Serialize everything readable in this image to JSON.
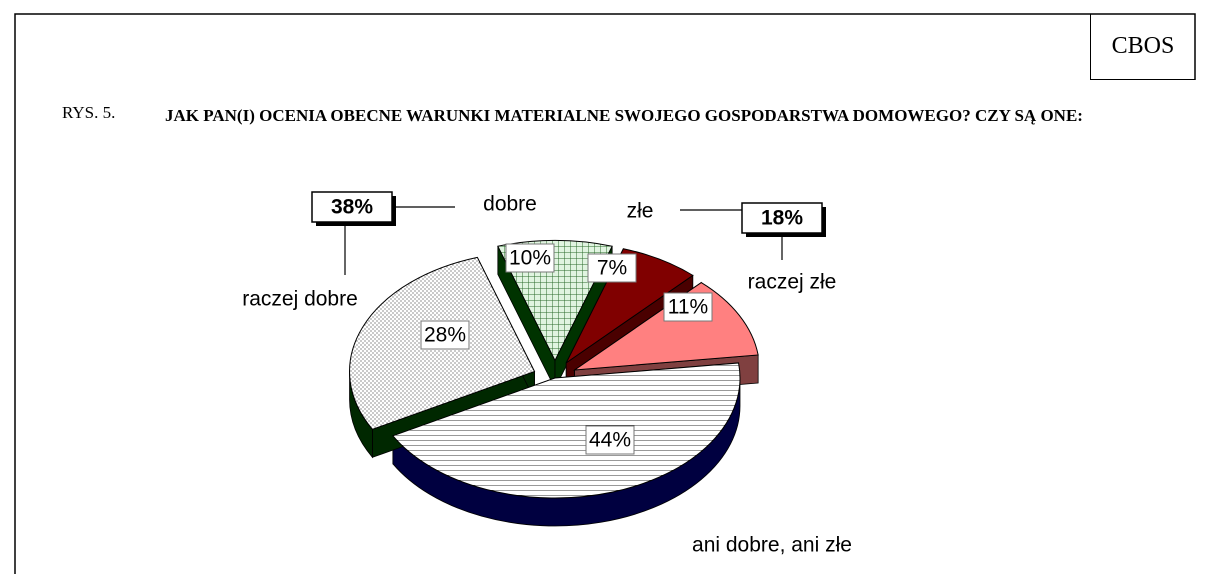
{
  "header": {
    "brand": "CBOS",
    "figure": "RYS. 5.",
    "title": "JAK PAN(I) OCENIA OBECNE WARUNKI MATERIALNE SWOJEGO GOSPODARSTWA DOMOWEGO? CZY SĄ ONE:"
  },
  "chart_data": {
    "type": "pie",
    "categories": [
      "dobre",
      "złe",
      "raczej złe",
      "ani dobre, ani złe",
      "raczej dobre"
    ],
    "values": [
      10,
      7,
      11,
      44,
      28
    ],
    "value_labels": [
      "10%",
      "7%",
      "11%",
      "44%",
      "28%"
    ],
    "colors": [
      "#d8f0d8",
      "#800000",
      "#ff8080",
      "#ffffff",
      "#ffffff"
    ],
    "group_labels": [
      {
        "value": 38,
        "label": "38%"
      },
      {
        "value": 18,
        "label": "18%"
      }
    ]
  }
}
